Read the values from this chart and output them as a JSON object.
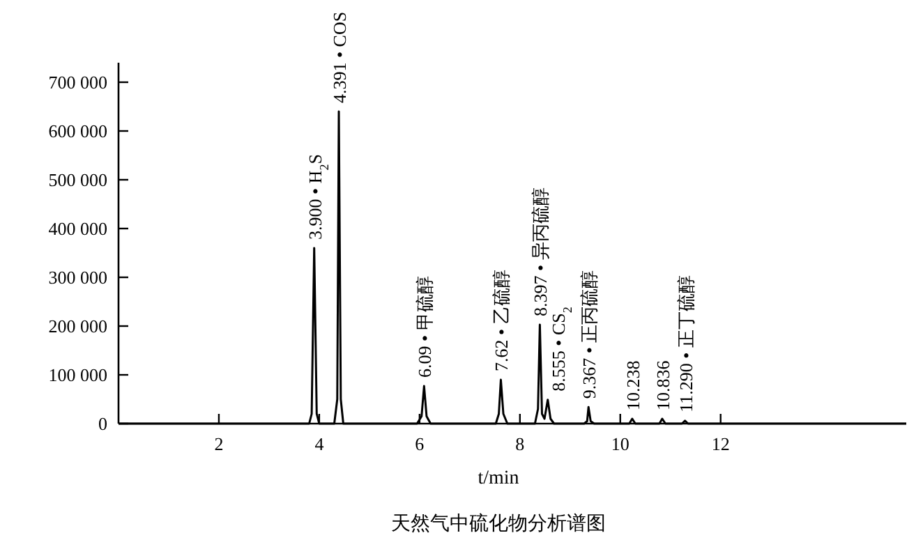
{
  "chart_data": {
    "type": "line",
    "title": "天然气中硫化物分析谱图",
    "xlabel": "t/min",
    "xlim": [
      0,
      15.7
    ],
    "ylim": [
      0,
      740000
    ],
    "xticks": [
      2,
      4,
      6,
      8,
      10,
      12
    ],
    "yticks": [
      {
        "value": 0,
        "label": "0"
      },
      {
        "value": 100000,
        "label": "100 000"
      },
      {
        "value": 200000,
        "label": "200 000"
      },
      {
        "value": 300000,
        "label": "300 000"
      },
      {
        "value": 400000,
        "label": "400 000"
      },
      {
        "value": 500000,
        "label": "500 000"
      },
      {
        "value": 600000,
        "label": "600 000"
      },
      {
        "value": 700000,
        "label": "700 000"
      }
    ],
    "series": [
      {
        "color": "#000000",
        "x": [
          0,
          3.8,
          3.85,
          3.9,
          3.95,
          4.0,
          4.3,
          4.36,
          4.391,
          4.43,
          4.48,
          5.95,
          6.04,
          6.09,
          6.14,
          6.22,
          7.52,
          7.58,
          7.62,
          7.67,
          7.75,
          8.3,
          8.36,
          8.397,
          8.44,
          8.49,
          8.555,
          8.61,
          8.68,
          9.28,
          9.34,
          9.367,
          9.41,
          9.48,
          10.18,
          10.238,
          10.3,
          10.78,
          10.836,
          10.9,
          11.23,
          11.29,
          11.35,
          15.7
        ],
        "values": [
          0,
          0,
          20000,
          360000,
          20000,
          0,
          0,
          50000,
          640000,
          50000,
          0,
          0,
          15000,
          77000,
          15000,
          0,
          0,
          20000,
          90000,
          20000,
          0,
          0,
          30000,
          203000,
          20000,
          10000,
          49000,
          10000,
          0,
          0,
          5000,
          34000,
          5000,
          0,
          0,
          10000,
          0,
          0,
          10000,
          0,
          0,
          6000,
          0,
          0
        ]
      }
    ],
    "annotations": [
      {
        "text": "3.900 • H$_{2}$S",
        "x": 3.9,
        "y": 360000
      },
      {
        "text": "4.391 • COS",
        "x": 4.391,
        "y": 640000
      },
      {
        "text": "6.09 • 甲硫醇",
        "x": 6.09,
        "y": 77000
      },
      {
        "text": "7.62 • 乙硫醇",
        "x": 7.62,
        "y": 90000
      },
      {
        "text": "8.397 • 异丙硫醇",
        "x": 8.397,
        "y": 203000
      },
      {
        "text": "8.555 • CS$_{2}$",
        "x": 8.555,
        "y": 49000
      },
      {
        "text": "9.367 • 正丙硫醇",
        "x": 9.367,
        "y": 34000
      },
      {
        "text": "10.238",
        "x": 10.238,
        "y": 10000
      },
      {
        "text": "10.836",
        "x": 10.836,
        "y": 10000
      },
      {
        "text": "11.290 • 正丁硫醇",
        "x": 11.29,
        "y": 6000
      }
    ],
    "marker": "none",
    "line_style": "solid",
    "grid": false
  }
}
